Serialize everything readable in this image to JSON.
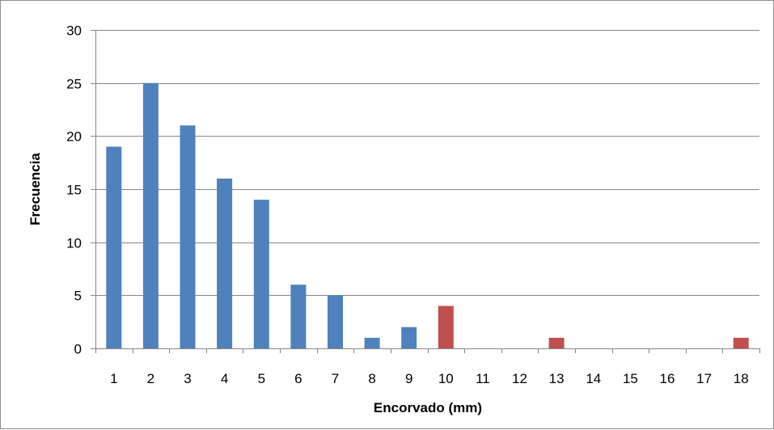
{
  "chart_data": {
    "type": "bar",
    "title": "",
    "xlabel": "Encorvado (mm)",
    "ylabel": "Frecuencia",
    "ylim": [
      0,
      30
    ],
    "yticks": [
      0,
      5,
      10,
      15,
      20,
      25,
      30
    ],
    "grid": true,
    "legend": "none",
    "categories": [
      "1",
      "2",
      "3",
      "4",
      "5",
      "6",
      "7",
      "8",
      "9",
      "10",
      "11",
      "12",
      "13",
      "14",
      "15",
      "16",
      "17",
      "18"
    ],
    "values": [
      19,
      25,
      21,
      16,
      14,
      6,
      5,
      1,
      2,
      4,
      0,
      0,
      1,
      0,
      0,
      0,
      0,
      1
    ],
    "bar_colors": [
      "#4f81bd",
      "#4f81bd",
      "#4f81bd",
      "#4f81bd",
      "#4f81bd",
      "#4f81bd",
      "#4f81bd",
      "#4f81bd",
      "#4f81bd",
      "#c0504d",
      "#4f81bd",
      "#4f81bd",
      "#c0504d",
      "#4f81bd",
      "#4f81bd",
      "#4f81bd",
      "#4f81bd",
      "#c0504d"
    ],
    "colors": {
      "primary": "#4f81bd",
      "highlight": "#c0504d",
      "grid": "#868686"
    }
  }
}
